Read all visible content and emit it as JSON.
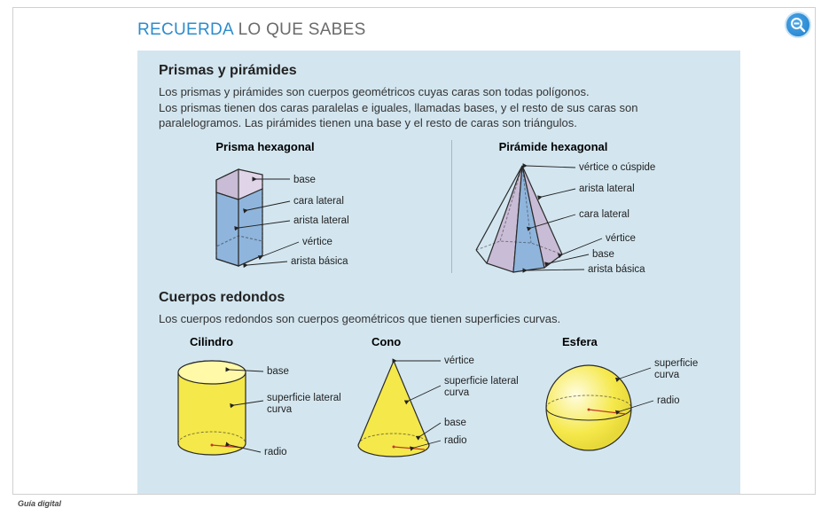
{
  "header": {
    "strong": "RECUERDA",
    "rest": " LO QUE SABES"
  },
  "zoom": {
    "icon": "zoom-out"
  },
  "section1": {
    "title": "Prismas y pirámides",
    "text": "Los prismas y pirámides son cuerpos geométricos cuyas caras son todas polígonos.\nLos prismas tienen dos caras paralelas e iguales, llamadas bases, y el resto de sus caras son paralelogramos. Las pirámides tienen una base y el resto de caras son triángulos.",
    "prism": {
      "title": "Prisma hexagonal",
      "labels": [
        "base",
        "cara lateral",
        "arista lateral",
        "vértice",
        "arista básica"
      ],
      "colors": {
        "topFill": "#e0d4e8",
        "frontFill": "#8fb5dc",
        "sideFill": "#c9bcd6",
        "stroke": "#2a2a2a"
      }
    },
    "pyramid": {
      "title": "Pirámide hexagonal",
      "labels": [
        "vértice o cúspide",
        "arista lateral",
        "cara lateral",
        "vértice",
        "base",
        "arista básica"
      ],
      "colors": {
        "frontFill": "#8fb5dc",
        "sideFill": "#c9bcd6",
        "stroke": "#2a2a2a"
      }
    }
  },
  "section2": {
    "title": "Cuerpos redondos",
    "text": "Los cuerpos redondos son cuerpos geométricos que tienen superficies curvas.",
    "cylinder": {
      "title": "Cilindro",
      "labels": [
        "base",
        "superficie lateral curva",
        "radio"
      ],
      "colors": {
        "fill": "#f5e84a",
        "top": "#fff9a8",
        "stroke": "#2a2a2a",
        "radio": "#c0392b"
      }
    },
    "cone": {
      "title": "Cono",
      "labels": [
        "vértice",
        "superficie lateral curva",
        "base",
        "radio"
      ],
      "colors": {
        "fill": "#f5e84a",
        "stroke": "#2a2a2a",
        "radio": "#c0392b"
      }
    },
    "sphere": {
      "title": "Esfera",
      "labels": [
        "superficie curva",
        "radio"
      ],
      "colors": {
        "fill": "#f5e84a",
        "highlight": "#fffde0",
        "stroke": "#2a2a2a",
        "radio": "#c0392b"
      }
    }
  },
  "footer": "Guía digital"
}
